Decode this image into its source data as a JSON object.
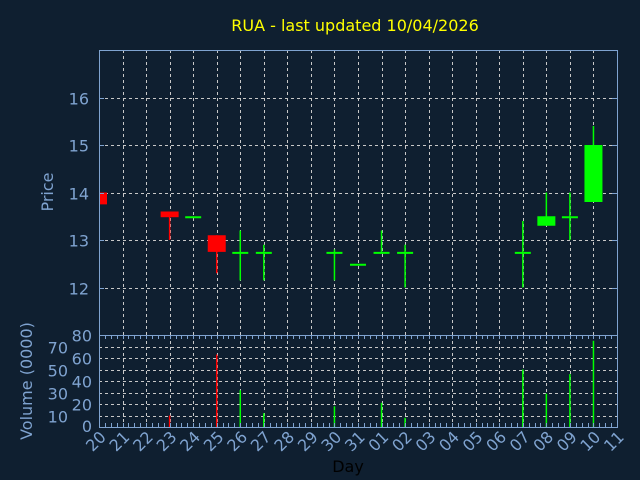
{
  "chart_data": [
    {
      "type": "candlestick",
      "title": "RUA - last updated 10/04/2026",
      "ylabel": "Price",
      "ylim": [
        11,
        17
      ],
      "yticks": [
        "12",
        "13",
        "14",
        "15",
        "16"
      ],
      "grid": true,
      "colors": {
        "up": "#00ff00",
        "down": "#ff0000",
        "title": "#ffff00",
        "axis": "#7fa3d0",
        "grid": "#c8c8c8",
        "background": "#0f1f30"
      },
      "candles": [
        {
          "day": "20",
          "open": 14.0,
          "high": 14.0,
          "low": 13.75,
          "close": 13.75
        },
        {
          "day": "23",
          "open": 13.6,
          "high": 13.6,
          "low": 13.0,
          "close": 13.48
        },
        {
          "day": "24",
          "open": 13.5,
          "high": 13.5,
          "low": 13.5,
          "close": 13.5
        },
        {
          "day": "25",
          "open": 13.1,
          "high": 13.1,
          "low": 12.3,
          "close": 12.75
        },
        {
          "day": "26",
          "open": 12.75,
          "high": 13.2,
          "low": 12.15,
          "close": 12.75
        },
        {
          "day": "27",
          "open": 12.75,
          "high": 12.9,
          "low": 12.15,
          "close": 12.75
        },
        {
          "day": "30",
          "open": 12.75,
          "high": 12.8,
          "low": 12.15,
          "close": 12.75
        },
        {
          "day": "31",
          "open": 12.5,
          "high": 12.5,
          "low": 12.5,
          "close": 12.5
        },
        {
          "day": "01",
          "open": 12.75,
          "high": 13.2,
          "low": 12.75,
          "close": 12.75
        },
        {
          "day": "02",
          "open": 12.75,
          "high": 12.9,
          "low": 12.0,
          "close": 12.75
        },
        {
          "day": "07",
          "open": 12.75,
          "high": 13.4,
          "low": 12.0,
          "close": 12.75
        },
        {
          "day": "08",
          "open": 13.3,
          "high": 14.0,
          "low": 13.3,
          "close": 13.5
        },
        {
          "day": "09",
          "open": 13.5,
          "high": 14.0,
          "low": 13.0,
          "close": 13.5
        },
        {
          "day": "10",
          "open": 13.8,
          "high": 15.4,
          "low": 13.8,
          "close": 15.0
        }
      ]
    },
    {
      "type": "bar",
      "ylabel": "Volume (0000)",
      "xlabel": "Day",
      "ylim": [
        0,
        80
      ],
      "yticks": [
        "0",
        "10",
        "20",
        "30",
        "40",
        "50",
        "60",
        "70",
        "80"
      ],
      "categories": [
        "20",
        "21",
        "22",
        "23",
        "24",
        "25",
        "26",
        "27",
        "28",
        "29",
        "30",
        "31",
        "01",
        "02",
        "03",
        "04",
        "05",
        "06",
        "07",
        "08",
        "09",
        "10",
        "11"
      ],
      "bars": [
        {
          "day": "23",
          "value": 10,
          "dir": "down"
        },
        {
          "day": "25",
          "value": 63,
          "dir": "down"
        },
        {
          "day": "26",
          "value": 32,
          "dir": "up"
        },
        {
          "day": "27",
          "value": 12,
          "dir": "up"
        },
        {
          "day": "30",
          "value": 18,
          "dir": "up"
        },
        {
          "day": "01",
          "value": 21,
          "dir": "up"
        },
        {
          "day": "02",
          "value": 8,
          "dir": "up"
        },
        {
          "day": "07",
          "value": 50,
          "dir": "up"
        },
        {
          "day": "08",
          "value": 29,
          "dir": "up"
        },
        {
          "day": "09",
          "value": 46,
          "dir": "up"
        },
        {
          "day": "10",
          "value": 75,
          "dir": "up"
        }
      ]
    }
  ]
}
